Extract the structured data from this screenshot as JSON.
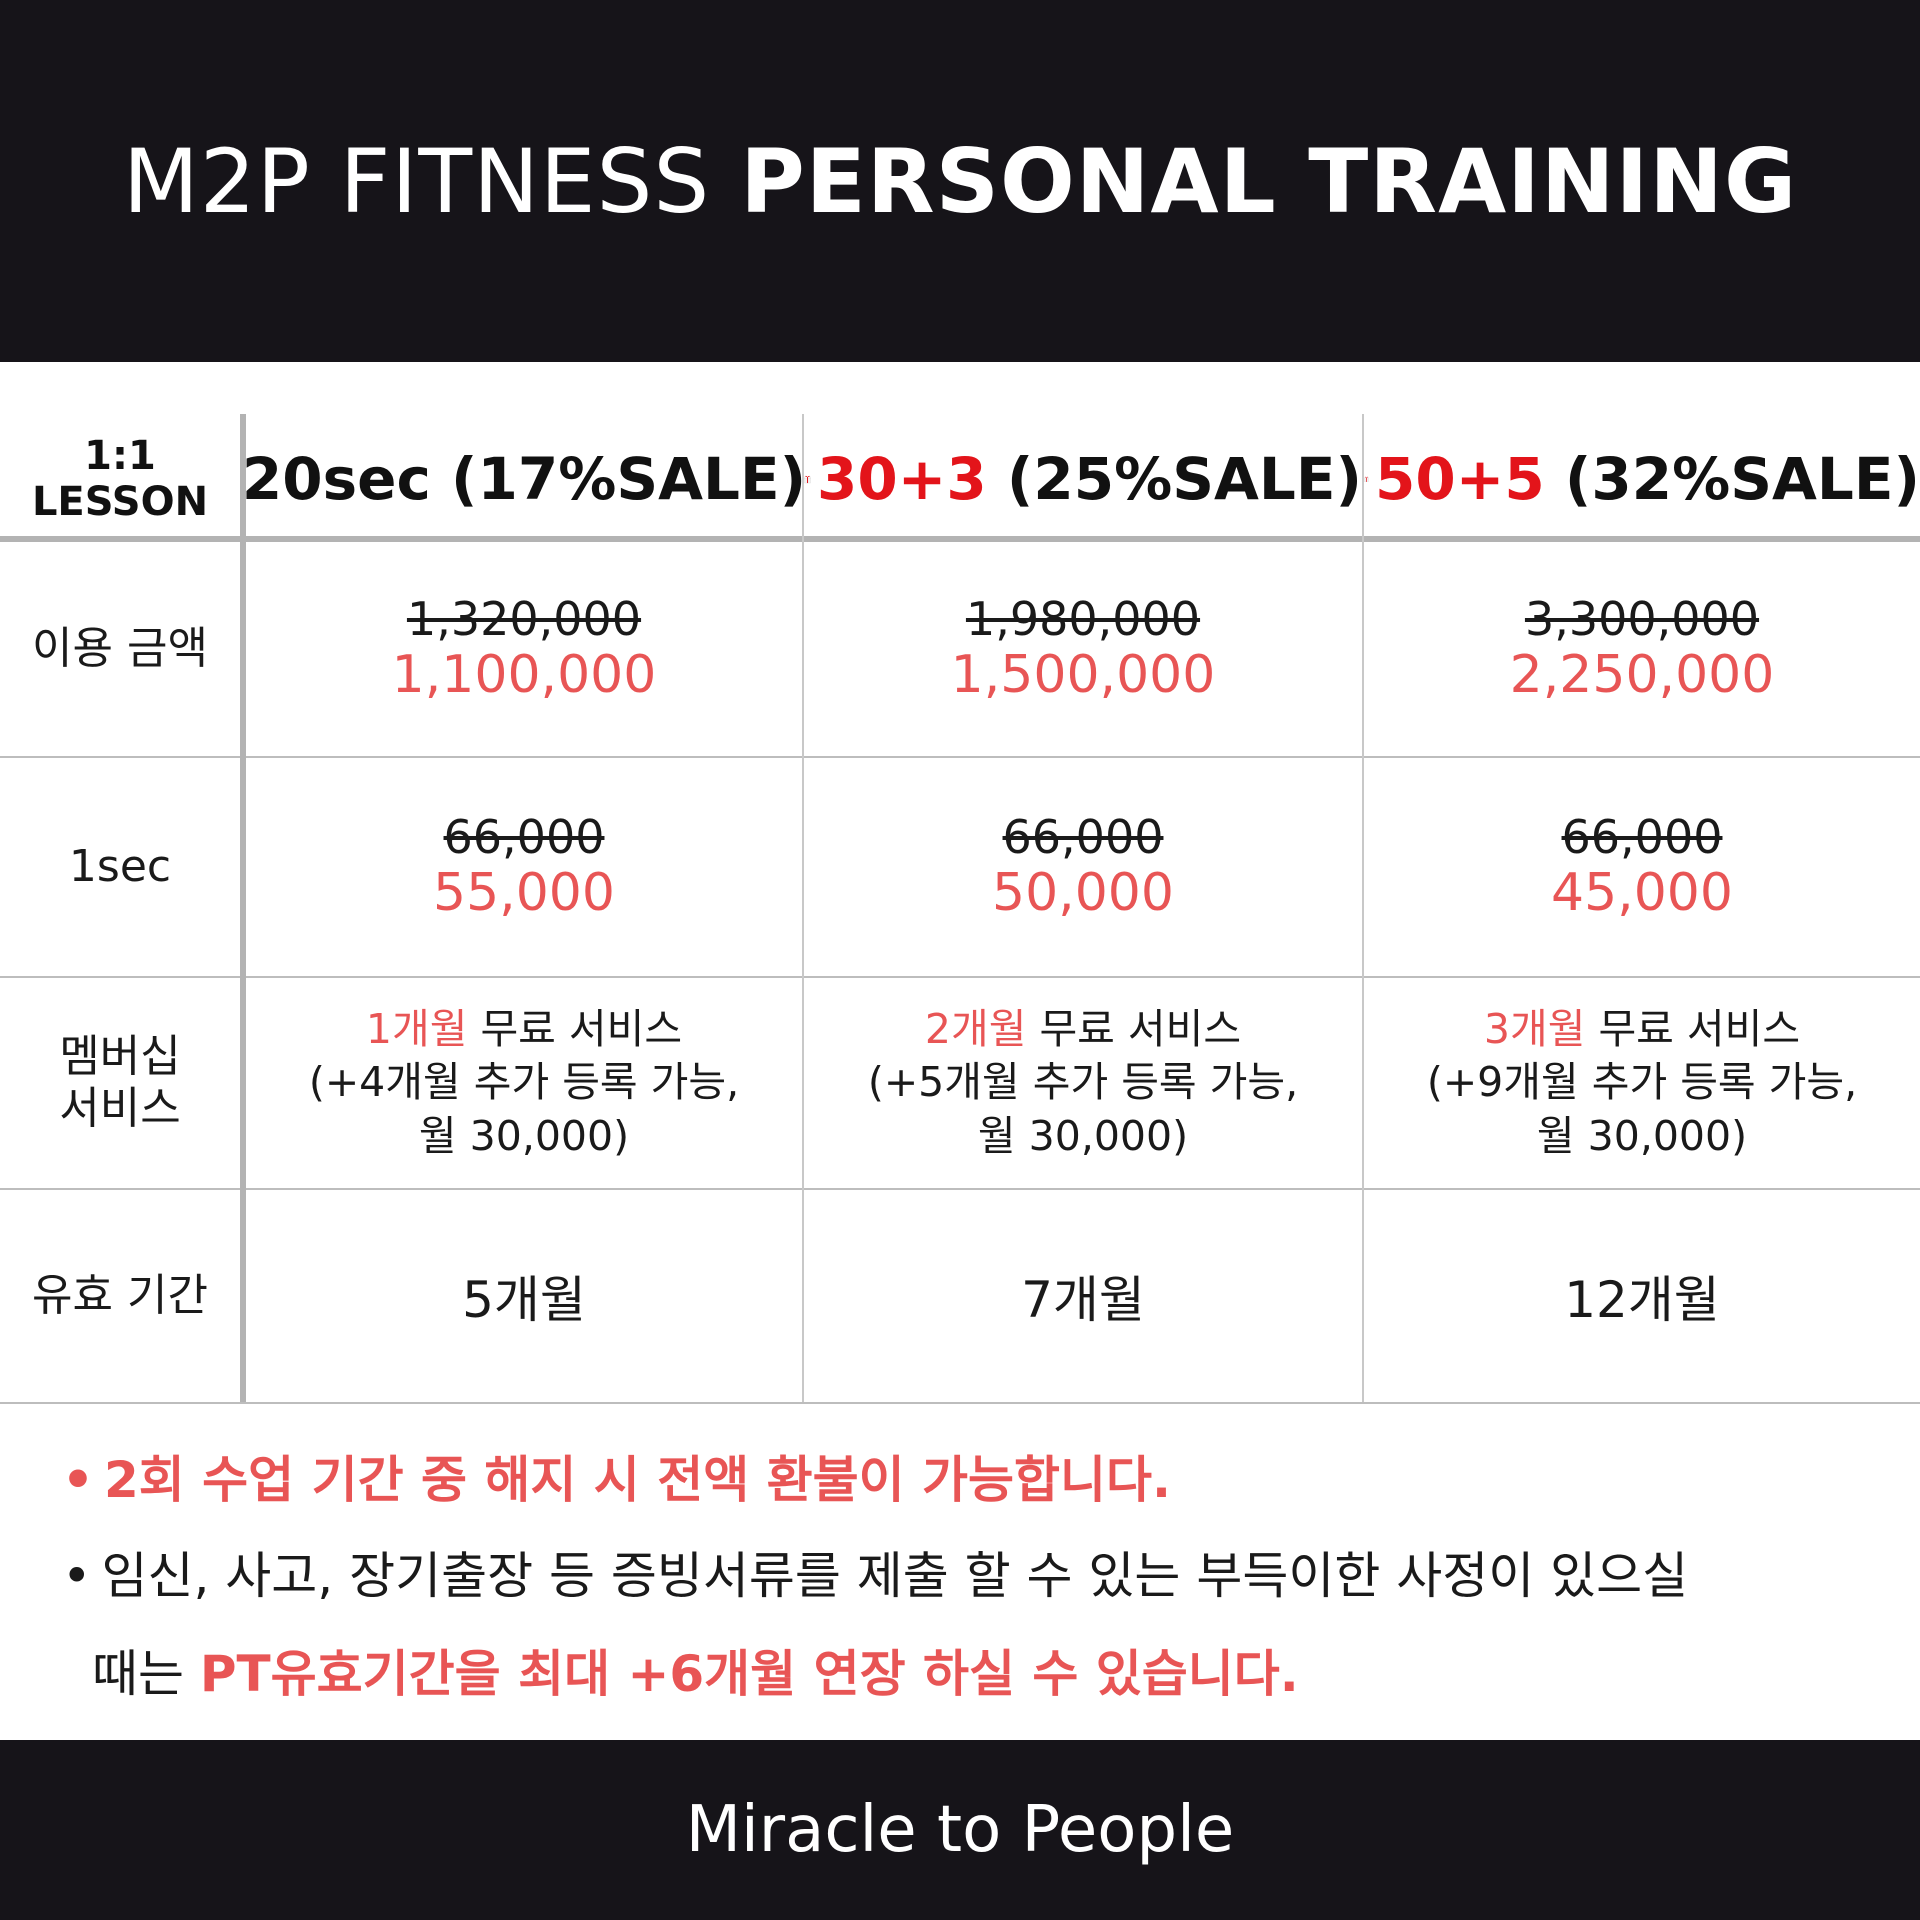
{
  "header": {
    "title_light": "M2P FITNESS",
    "title_bold": "PERSONAL TRAINING"
  },
  "table": {
    "corner": {
      "line1": "1:1",
      "line2": "LESSON"
    },
    "columns": [
      {
        "label_red": "",
        "label_rest": "20sec (17%SALE)",
        "gift": false
      },
      {
        "label_red": "30+3",
        "label_rest": " (25%SALE)",
        "gift": true
      },
      {
        "label_red": "50+5",
        "label_rest": " (32%SALE)",
        "gift": true
      }
    ],
    "row_labels": {
      "price": "이용 금액",
      "per_session": "1sec",
      "membership_line1": "멤버십",
      "membership_line2": "서비스",
      "validity": "유효 기간"
    },
    "price": [
      {
        "old": "1,320,000",
        "new": "1,100,000"
      },
      {
        "old": "1,980,000",
        "new": "1,500,000"
      },
      {
        "old": "3,300,000",
        "new": "2,250,000"
      }
    ],
    "per_session": [
      {
        "old": "66,000",
        "new": "55,000"
      },
      {
        "old": "66,000",
        "new": "50,000"
      },
      {
        "old": "66,000",
        "new": "45,000"
      }
    ],
    "membership": [
      {
        "red": "1개월",
        "rest": " 무료 서비스",
        "line2": "(+4개월 추가 등록 가능,",
        "line3": "월 30,000)"
      },
      {
        "red": "2개월",
        "rest": " 무료 서비스",
        "line2": "(+5개월 추가 등록 가능,",
        "line3": "월 30,000)"
      },
      {
        "red": "3개월",
        "rest": " 무료 서비스",
        "line2": "(+9개월 추가 등록 가능,",
        "line3": "월 30,000)"
      }
    ],
    "validity": [
      "5개월",
      "7개월",
      "12개월"
    ]
  },
  "notes": {
    "bullet": "•",
    "note1": "2회 수업 기간 중 해지 시 전액 환불이 가능합니다.",
    "note2_line1": "임신, 사고, 장기출장 등 증빙서류를 제출 할 수 있는 부득이한 사정이 있으실",
    "note2_line2_plain": "때는 ",
    "note2_line2_red": "PT유효기간을 최대 +6개월 연장 하실 수 있습니다."
  },
  "footer": {
    "tagline": "Miracle to People"
  },
  "colors": {
    "dark": "#161419",
    "accent_red": "#e3141a",
    "price_red": "#e85555"
  },
  "icons": {
    "gift": "gift-box-icon"
  }
}
